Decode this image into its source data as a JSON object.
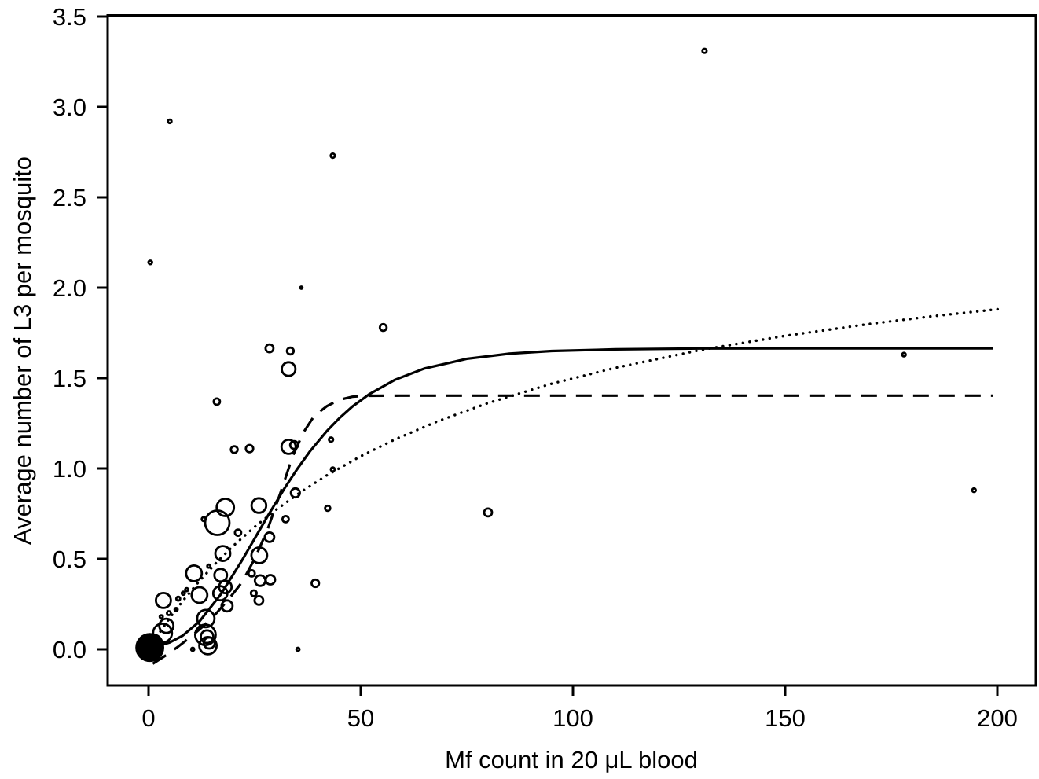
{
  "figure": {
    "background": "#ffffff",
    "ink_color": "#000000"
  },
  "chart_data": {
    "type": "scatter",
    "title": "",
    "xlabel": "Mf count in 20 μL blood",
    "ylabel": "Average number of L3 per mosquito",
    "xlim": [
      -10,
      209
    ],
    "ylim": [
      -0.21,
      3.5
    ],
    "x_ticks": [
      0,
      50,
      100,
      150,
      200
    ],
    "y_ticks": [
      0.0,
      0.5,
      1.0,
      1.5,
      2.0,
      2.5,
      3.0,
      3.5
    ],
    "y_tick_labels": [
      "0.0",
      "0.5",
      "1.0",
      "1.5",
      "2.0",
      "2.5",
      "3.0",
      "3.5"
    ],
    "x_tick_labels": [
      "0",
      "50",
      "100",
      "150",
      "200"
    ],
    "grid": false,
    "legend_position": "none",
    "marker_note": "open circles, radius proportional to group size; origin cluster overplotted solid",
    "points": [
      {
        "x": 0.3,
        "y": 0.01,
        "r": 17,
        "filled": true
      },
      {
        "x": 1.0,
        "y": 0.03,
        "r": 12,
        "filled": false
      },
      {
        "x": 3.3,
        "y": 0.09,
        "r": 12,
        "filled": false
      },
      {
        "x": 4.2,
        "y": 0.13,
        "r": 9,
        "filled": false
      },
      {
        "x": 3.5,
        "y": 0.27,
        "r": 9.5,
        "filled": false
      },
      {
        "x": 3.0,
        "y": 0.18,
        "r": 2,
        "filled": false
      },
      {
        "x": 4.8,
        "y": 0.2,
        "r": 2.5,
        "filled": false
      },
      {
        "x": 6.5,
        "y": 0.22,
        "r": 2,
        "filled": false
      },
      {
        "x": 7.0,
        "y": 0.28,
        "r": 2.5,
        "filled": false
      },
      {
        "x": 8.2,
        "y": 0.31,
        "r": 2,
        "filled": false
      },
      {
        "x": 9.0,
        "y": 0.33,
        "r": 2,
        "filled": false
      },
      {
        "x": 10.4,
        "y": 0.0,
        "r": 2,
        "filled": false
      },
      {
        "x": 10.7,
        "y": 0.42,
        "r": 10,
        "filled": false
      },
      {
        "x": 12.0,
        "y": 0.3,
        "r": 10,
        "filled": false
      },
      {
        "x": 13.5,
        "y": 0.17,
        "r": 11,
        "filled": false
      },
      {
        "x": 13.4,
        "y": 0.08,
        "r": 13,
        "filled": false
      },
      {
        "x": 13.8,
        "y": 0.07,
        "r": 8,
        "filled": false
      },
      {
        "x": 14.0,
        "y": 0.02,
        "r": 11,
        "filled": false
      },
      {
        "x": 14.3,
        "y": 0.035,
        "r": 7,
        "filled": false
      },
      {
        "x": 13.0,
        "y": 0.72,
        "r": 2.5,
        "filled": false
      },
      {
        "x": 14.2,
        "y": 0.46,
        "r": 2,
        "filled": false
      },
      {
        "x": 16.1,
        "y": 1.37,
        "r": 4,
        "filled": false
      },
      {
        "x": 16.2,
        "y": 0.7,
        "r": 15.5,
        "filled": false
      },
      {
        "x": 16.9,
        "y": 0.31,
        "r": 9,
        "filled": false
      },
      {
        "x": 17.0,
        "y": 0.41,
        "r": 8,
        "filled": false
      },
      {
        "x": 17.5,
        "y": 0.53,
        "r": 9.5,
        "filled": false
      },
      {
        "x": 18.1,
        "y": 0.785,
        "r": 11,
        "filled": false
      },
      {
        "x": 18.1,
        "y": 0.345,
        "r": 8,
        "filled": false
      },
      {
        "x": 18.5,
        "y": 0.24,
        "r": 7,
        "filled": false
      },
      {
        "x": 20.2,
        "y": 1.105,
        "r": 4.3,
        "filled": false
      },
      {
        "x": 21.1,
        "y": 0.645,
        "r": 4,
        "filled": false
      },
      {
        "x": 23.8,
        "y": 1.11,
        "r": 4.7,
        "filled": false
      },
      {
        "x": 24.3,
        "y": 0.42,
        "r": 4,
        "filled": false
      },
      {
        "x": 24.8,
        "y": 0.31,
        "r": 3.7,
        "filled": false
      },
      {
        "x": 26.0,
        "y": 0.27,
        "r": 5.5,
        "filled": false
      },
      {
        "x": 26.1,
        "y": 0.52,
        "r": 10,
        "filled": false
      },
      {
        "x": 26.0,
        "y": 0.795,
        "r": 9.3,
        "filled": false
      },
      {
        "x": 26.3,
        "y": 0.38,
        "r": 6.7,
        "filled": false
      },
      {
        "x": 28.5,
        "y": 0.62,
        "r": 6,
        "filled": false
      },
      {
        "x": 28.7,
        "y": 0.385,
        "r": 6,
        "filled": false
      },
      {
        "x": 32.3,
        "y": 0.72,
        "r": 4,
        "filled": false
      },
      {
        "x": 33.0,
        "y": 1.12,
        "r": 9,
        "filled": false
      },
      {
        "x": 34.3,
        "y": 1.13,
        "r": 5,
        "filled": false
      },
      {
        "x": 34.6,
        "y": 0.865,
        "r": 5.7,
        "filled": false
      },
      {
        "x": 28.5,
        "y": 1.665,
        "r": 5,
        "filled": false
      },
      {
        "x": 33.4,
        "y": 1.65,
        "r": 4.3,
        "filled": false
      },
      {
        "x": 33.0,
        "y": 1.55,
        "r": 8.7,
        "filled": false
      },
      {
        "x": 35.2,
        "y": 0.0,
        "r": 2,
        "filled": false
      },
      {
        "x": 36.0,
        "y": 2.0,
        "r": 1.5,
        "filled": false
      },
      {
        "x": 39.3,
        "y": 0.365,
        "r": 4.7,
        "filled": false
      },
      {
        "x": 42.2,
        "y": 0.78,
        "r": 3.3,
        "filled": false
      },
      {
        "x": 43.0,
        "y": 1.16,
        "r": 2.7,
        "filled": false
      },
      {
        "x": 43.4,
        "y": 0.995,
        "r": 2.5,
        "filled": false
      },
      {
        "x": 43.4,
        "y": 2.73,
        "r": 2.7,
        "filled": false
      },
      {
        "x": 5.0,
        "y": 2.92,
        "r": 2.3,
        "filled": false
      },
      {
        "x": 0.4,
        "y": 2.14,
        "r": 2.3,
        "filled": false
      },
      {
        "x": 55.3,
        "y": 1.78,
        "r": 4.3,
        "filled": false
      },
      {
        "x": 80.0,
        "y": 0.757,
        "r": 5,
        "filled": false
      },
      {
        "x": 131,
        "y": 3.31,
        "r": 2.7,
        "filled": false
      },
      {
        "x": 178,
        "y": 1.63,
        "r": 2.3,
        "filled": false
      },
      {
        "x": 194.5,
        "y": 0.88,
        "r": 2.3,
        "filled": false
      }
    ],
    "series": [
      {
        "name": "solid-fit",
        "line_style": "solid",
        "points": [
          [
            0,
            0.008
          ],
          [
            2,
            0.016
          ],
          [
            5,
            0.038
          ],
          [
            8,
            0.075
          ],
          [
            12,
            0.154
          ],
          [
            17,
            0.303
          ],
          [
            22,
            0.491
          ],
          [
            25,
            0.612
          ],
          [
            28,
            0.734
          ],
          [
            32,
            0.889
          ],
          [
            35,
            0.996
          ],
          [
            38,
            1.094
          ],
          [
            42,
            1.207
          ],
          [
            45,
            1.279
          ],
          [
            48,
            1.342
          ],
          [
            52,
            1.411
          ],
          [
            58,
            1.49
          ],
          [
            65,
            1.553
          ],
          [
            75,
            1.607
          ],
          [
            85,
            1.635
          ],
          [
            95,
            1.65
          ],
          [
            110,
            1.659
          ],
          [
            130,
            1.664
          ],
          [
            160,
            1.665
          ],
          [
            199,
            1.665
          ]
        ]
      },
      {
        "name": "dashed-fit",
        "line_style": "dashed",
        "points": [
          [
            1,
            -0.08
          ],
          [
            4,
            -0.035
          ],
          [
            7,
            0.015
          ],
          [
            10,
            0.07
          ],
          [
            13,
            0.13
          ],
          [
            16,
            0.2
          ],
          [
            19,
            0.28
          ],
          [
            22,
            0.37
          ],
          [
            25,
            0.5
          ],
          [
            28,
            0.66
          ],
          [
            31,
            0.86
          ],
          [
            34,
            1.07
          ],
          [
            36.5,
            1.2
          ],
          [
            39,
            1.29
          ],
          [
            42,
            1.345
          ],
          [
            45,
            1.38
          ],
          [
            48,
            1.397
          ],
          [
            51,
            1.402
          ],
          [
            60,
            1.403
          ],
          [
            100,
            1.403
          ],
          [
            150,
            1.403
          ],
          [
            199,
            1.403
          ]
        ]
      },
      {
        "name": "dotted-fit",
        "line_style": "dotted",
        "points": [
          [
            1,
            0.037
          ],
          [
            2,
            0.072
          ],
          [
            5,
            0.173
          ],
          [
            8,
            0.265
          ],
          [
            12,
            0.378
          ],
          [
            16,
            0.48
          ],
          [
            20,
            0.573
          ],
          [
            25,
            0.677
          ],
          [
            30,
            0.771
          ],
          [
            36,
            0.872
          ],
          [
            42,
            0.962
          ],
          [
            50,
            1.068
          ],
          [
            58,
            1.16
          ],
          [
            68,
            1.26
          ],
          [
            80,
            1.362
          ],
          [
            95,
            1.469
          ],
          [
            110,
            1.557
          ],
          [
            130,
            1.655
          ],
          [
            150,
            1.734
          ],
          [
            170,
            1.8
          ],
          [
            185,
            1.843
          ],
          [
            201,
            1.883
          ]
        ]
      }
    ]
  }
}
